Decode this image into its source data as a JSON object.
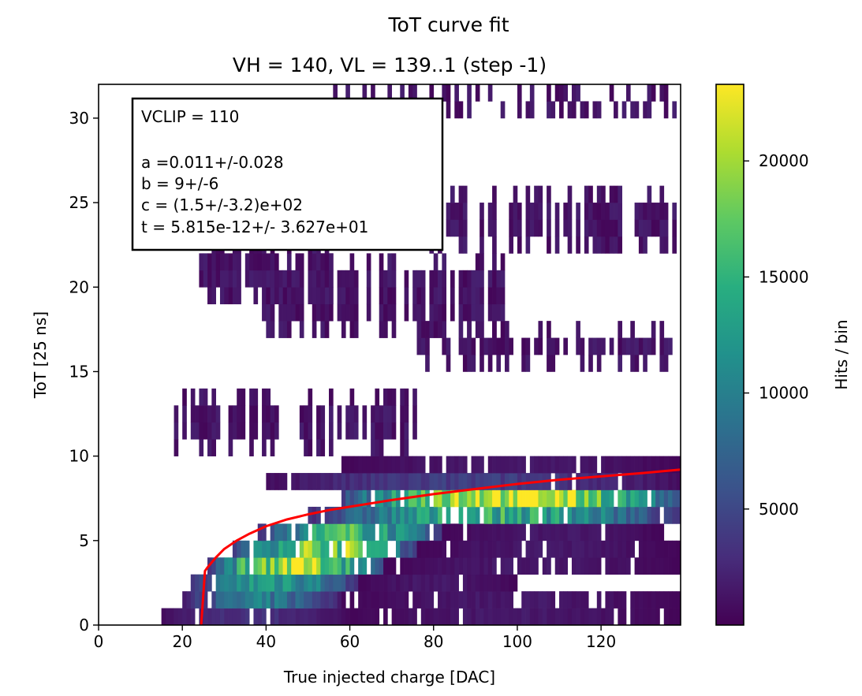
{
  "chart_data": {
    "type": "heatmap",
    "suptitle": "ToT curve fit",
    "title": "VH = 140, VL = 139..1 (step -1)",
    "xlabel": "True injected charge [DAC]",
    "ylabel": "ToT [25 ns]",
    "colorbar_label": "Hits / bin",
    "colormap": "viridis",
    "xlim": [
      0,
      139
    ],
    "ylim": [
      0,
      32
    ],
    "xticks": [
      "0",
      "20",
      "40",
      "60",
      "80",
      "100",
      "120"
    ],
    "yticks": [
      "0",
      "5",
      "10",
      "15",
      "20",
      "25",
      "30"
    ],
    "colorbar_range": [
      0,
      23300
    ],
    "colorbar_ticks": [
      "5000",
      "10000",
      "15000",
      "20000"
    ],
    "fit_curve": {
      "color": "#ff0000",
      "x": [
        24.5,
        25.4,
        26,
        28,
        30,
        33,
        36,
        40,
        45,
        50,
        55,
        60,
        70,
        80,
        90,
        100,
        110,
        120,
        130,
        139
      ],
      "y": [
        0,
        3.2,
        3.4,
        4.0,
        4.5,
        5.0,
        5.4,
        5.85,
        6.25,
        6.55,
        6.8,
        7.0,
        7.4,
        7.75,
        8.05,
        8.35,
        8.6,
        8.8,
        9.0,
        9.2
      ]
    },
    "bands": [
      {
        "tot": 0,
        "peak": 3000,
        "x": [
          14,
          60
        ]
      },
      {
        "tot": 0,
        "peak": 1500,
        "x": [
          60,
          139
        ]
      },
      {
        "tot": 1,
        "peak": 9000,
        "x": [
          20,
          58
        ]
      },
      {
        "tot": 1,
        "peak": 1500,
        "x": [
          58,
          139
        ]
      },
      {
        "tot": 2,
        "peak": 13000,
        "x": [
          22,
          62
        ]
      },
      {
        "tot": 2,
        "peak": 1500,
        "x": [
          62,
          100
        ]
      },
      {
        "tot": 3,
        "peak": 21000,
        "x": [
          26,
          68
        ]
      },
      {
        "tot": 3,
        "peak": 1500,
        "x": [
          68,
          139
        ]
      },
      {
        "tot": 4,
        "peak": 19000,
        "x": [
          32,
          76
        ]
      },
      {
        "tot": 4,
        "peak": 1500,
        "x": [
          76,
          139
        ]
      },
      {
        "tot": 5,
        "peak": 15000,
        "x": [
          38,
          82
        ]
      },
      {
        "tot": 5,
        "peak": 1500,
        "x": [
          82,
          135
        ]
      },
      {
        "tot": 6,
        "peak": 14000,
        "x": [
          50,
          139
        ]
      },
      {
        "tot": 7,
        "peak": 23000,
        "x": [
          58,
          139
        ]
      },
      {
        "tot": 8,
        "peak": 4000,
        "x": [
          40,
          139
        ]
      },
      {
        "tot": 9,
        "peak": 1500,
        "x": [
          58,
          139
        ]
      }
    ],
    "sparse_regions": [
      {
        "tot": [
          10,
          14
        ],
        "x": [
          18,
          76
        ]
      },
      {
        "tot": [
          15,
          18
        ],
        "x": [
          75,
          139
        ]
      },
      {
        "tot": [
          17,
          22
        ],
        "x": [
          39,
          97
        ]
      },
      {
        "tot": [
          19,
          23
        ],
        "x": [
          24,
          56
        ]
      },
      {
        "tot": [
          22,
          26
        ],
        "x": [
          75,
          139
        ]
      },
      {
        "tot": [
          30,
          32
        ],
        "x": [
          56,
          139
        ]
      }
    ]
  },
  "annotation": {
    "lines": [
      "VCLIP = 110",
      "",
      "a =0.011+/-0.028",
      "b = 9+/-6",
      "c = (1.5+/-3.2)e+02",
      "t = 5.815e-12+/- 3.627e+01"
    ]
  }
}
